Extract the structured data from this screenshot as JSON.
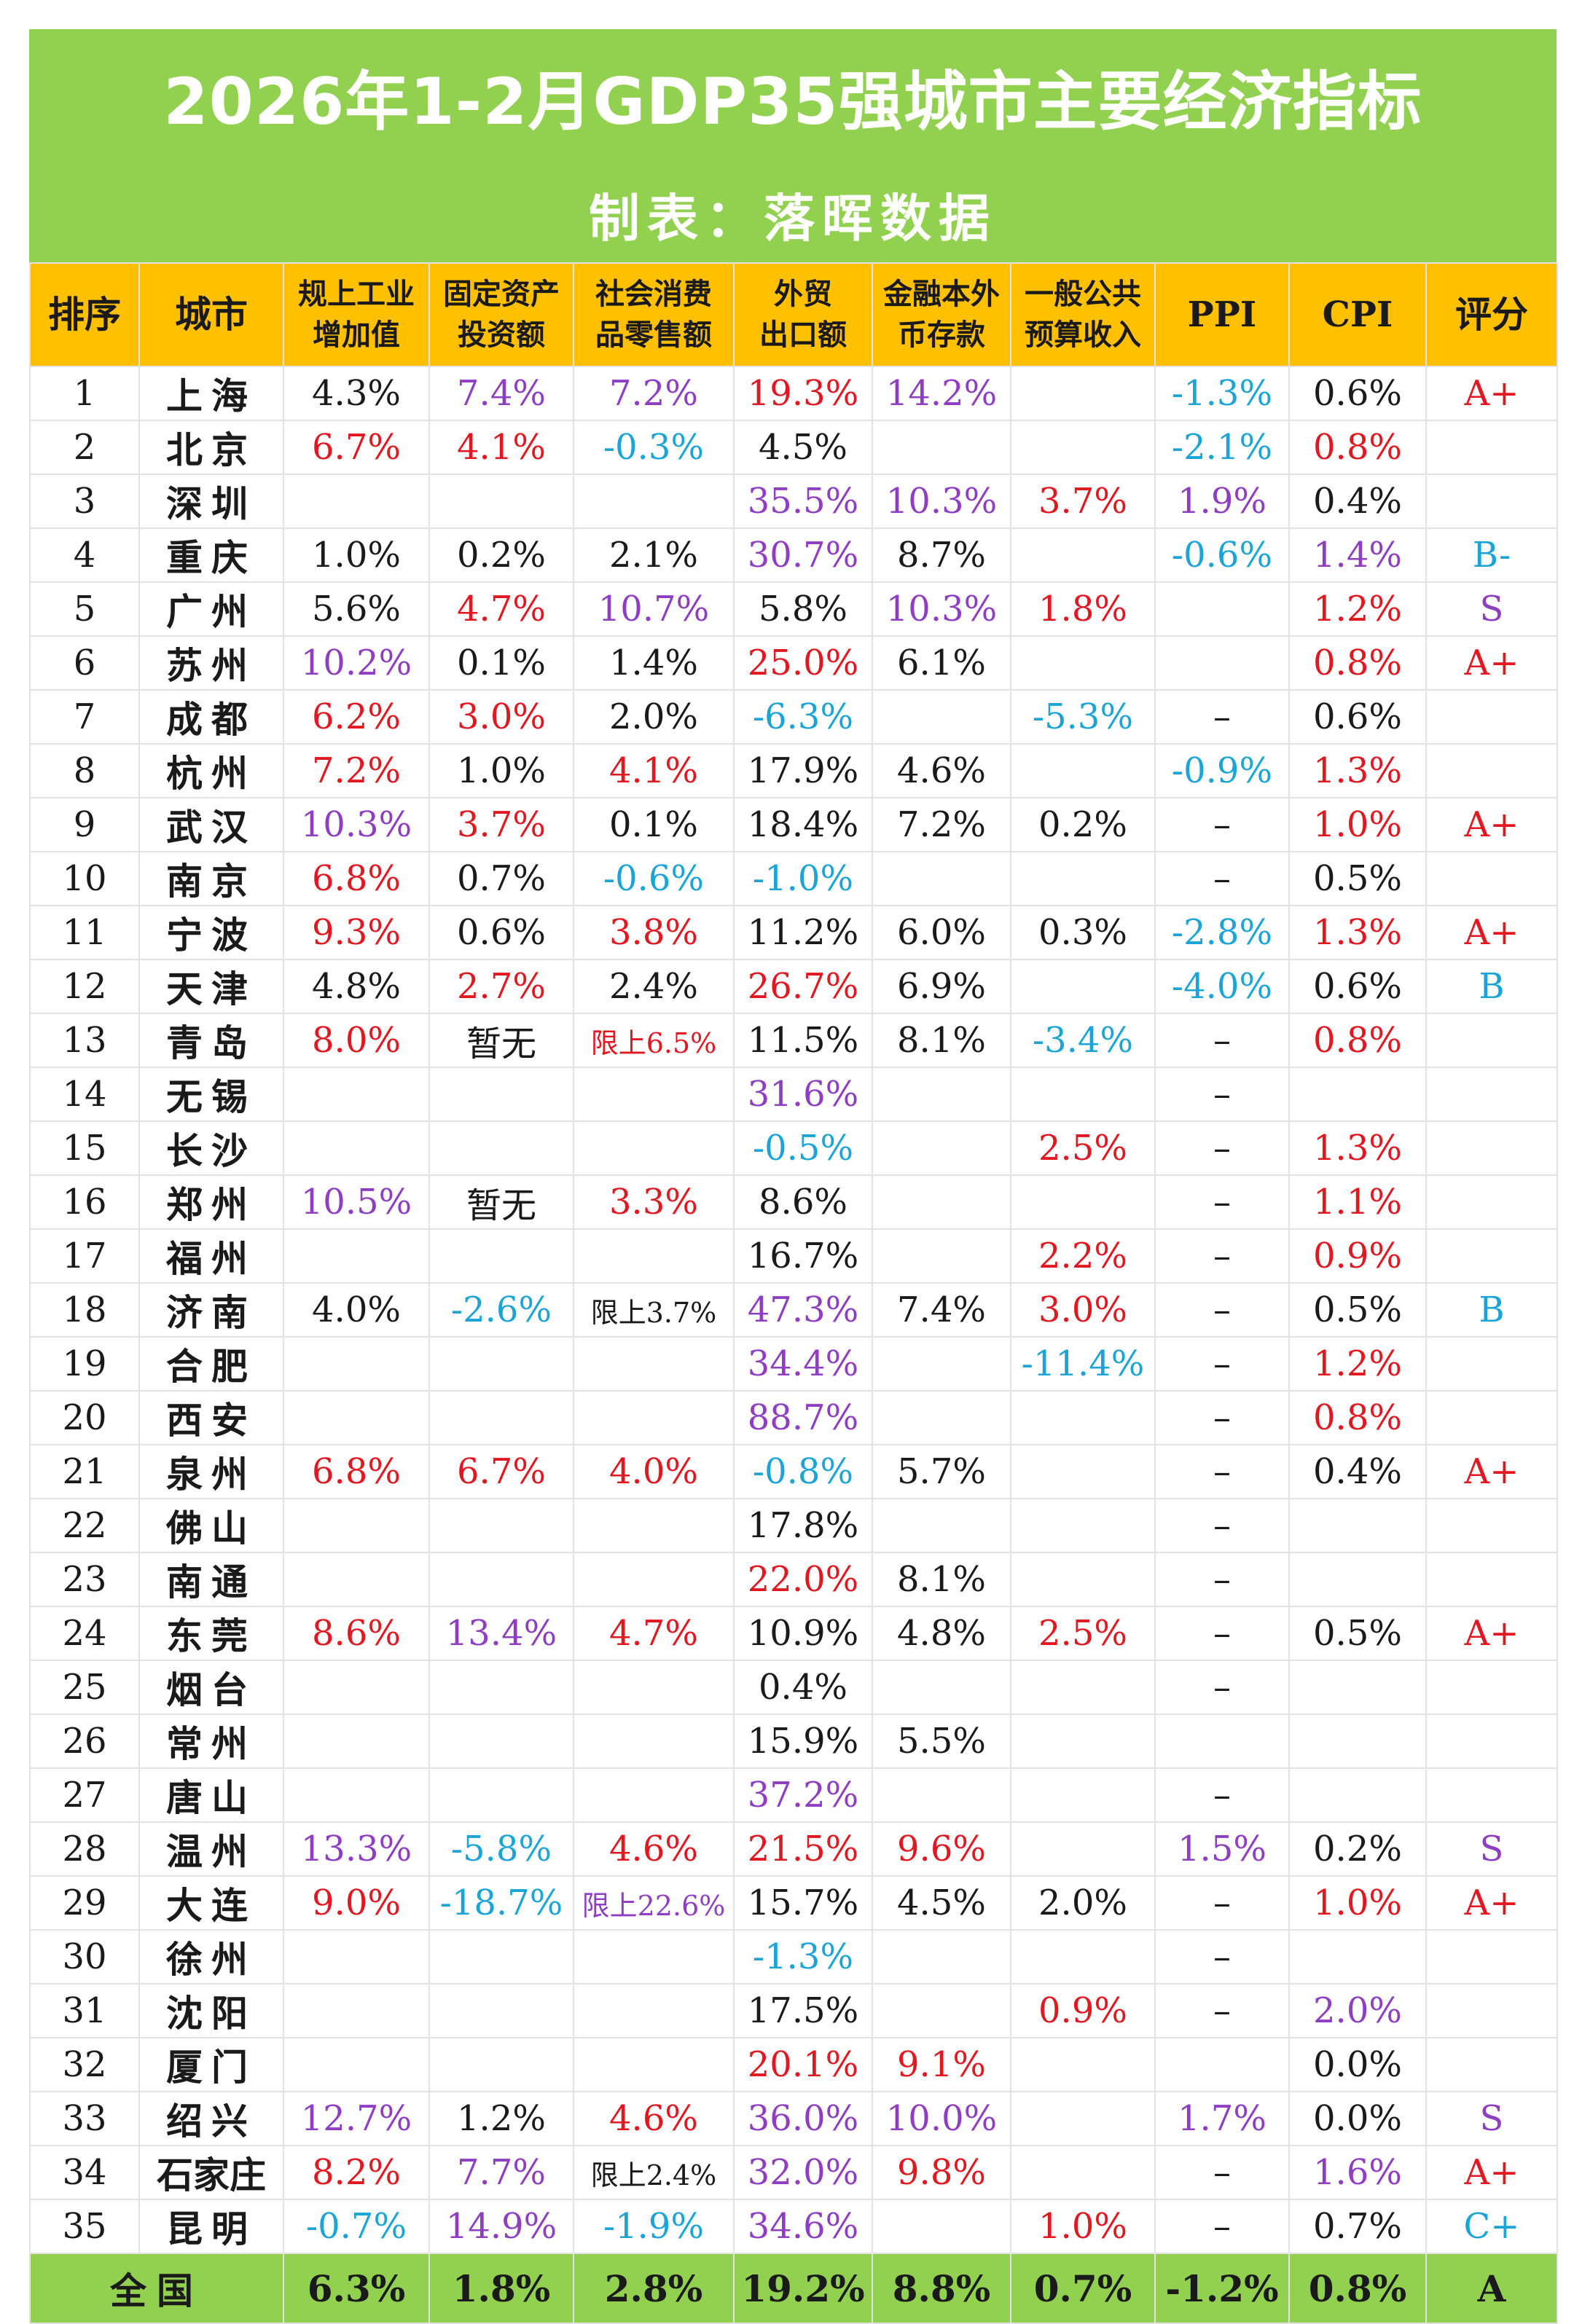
{
  "title": "2026年1-2月GDP35强城市主要经济指标",
  "subtitle": "制表：落晖数据",
  "headers": [
    {
      "line1": "排序",
      "line2": ""
    },
    {
      "line1": "城市",
      "line2": ""
    },
    {
      "line1": "规上工业",
      "line2": "增加值"
    },
    {
      "line1": "固定资产",
      "line2": "投资额"
    },
    {
      "line1": "社会消费",
      "line2": "品零售额"
    },
    {
      "line1": "外贸",
      "line2": "出口额"
    },
    {
      "line1": "金融本外",
      "line2": "币存款"
    },
    {
      "line1": "一般公共",
      "line2": "预算收入"
    },
    {
      "line1": "PPI",
      "line2": ""
    },
    {
      "line1": "CPI",
      "line2": ""
    },
    {
      "line1": "评分",
      "line2": ""
    }
  ],
  "colors": {
    "red": "#e3171f",
    "purple": "#8f3ec4",
    "blue": "#1aa4d8",
    "black": "#1a1a1a",
    "title_green": "#92d050",
    "header_orange": "#ffc000"
  },
  "rows": [
    {
      "rank": "1",
      "city": "上海",
      "cells": [
        [
          "4.3%",
          "k"
        ],
        [
          "7.4%",
          "p"
        ],
        [
          "7.2%",
          "p"
        ],
        [
          "19.3%",
          "r"
        ],
        [
          "14.2%",
          "p"
        ],
        [
          "",
          ""
        ],
        [
          "-1.3%",
          "b"
        ],
        [
          "0.6%",
          "k"
        ],
        [
          "A+",
          "r"
        ]
      ]
    },
    {
      "rank": "2",
      "city": "北京",
      "cells": [
        [
          "6.7%",
          "r"
        ],
        [
          "4.1%",
          "r"
        ],
        [
          "-0.3%",
          "b"
        ],
        [
          "4.5%",
          "k"
        ],
        [
          "",
          ""
        ],
        [
          "",
          ""
        ],
        [
          "-2.1%",
          "b"
        ],
        [
          "0.8%",
          "r"
        ],
        [
          "",
          ""
        ]
      ]
    },
    {
      "rank": "3",
      "city": "深圳",
      "cells": [
        [
          "",
          ""
        ],
        [
          "",
          ""
        ],
        [
          "",
          ""
        ],
        [
          "35.5%",
          "p"
        ],
        [
          "10.3%",
          "p"
        ],
        [
          "3.7%",
          "r"
        ],
        [
          "1.9%",
          "p"
        ],
        [
          "0.4%",
          "k"
        ],
        [
          "",
          ""
        ]
      ]
    },
    {
      "rank": "4",
      "city": "重庆",
      "cells": [
        [
          "1.0%",
          "k"
        ],
        [
          "0.2%",
          "k"
        ],
        [
          "2.1%",
          "k"
        ],
        [
          "30.7%",
          "p"
        ],
        [
          "8.7%",
          "k"
        ],
        [
          "",
          ""
        ],
        [
          "-0.6%",
          "b"
        ],
        [
          "1.4%",
          "p"
        ],
        [
          "B-",
          "b"
        ]
      ]
    },
    {
      "rank": "5",
      "city": "广州",
      "cells": [
        [
          "5.6%",
          "k"
        ],
        [
          "4.7%",
          "r"
        ],
        [
          "10.7%",
          "p"
        ],
        [
          "5.8%",
          "k"
        ],
        [
          "10.3%",
          "p"
        ],
        [
          "1.8%",
          "r"
        ],
        [
          "",
          ""
        ],
        [
          "1.2%",
          "r"
        ],
        [
          "S",
          "p"
        ]
      ]
    },
    {
      "rank": "6",
      "city": "苏州",
      "cells": [
        [
          "10.2%",
          "p"
        ],
        [
          "0.1%",
          "k"
        ],
        [
          "1.4%",
          "k"
        ],
        [
          "25.0%",
          "r"
        ],
        [
          "6.1%",
          "k"
        ],
        [
          "",
          ""
        ],
        [
          "",
          ""
        ],
        [
          "0.8%",
          "r"
        ],
        [
          "A+",
          "r"
        ]
      ]
    },
    {
      "rank": "7",
      "city": "成都",
      "cells": [
        [
          "6.2%",
          "r"
        ],
        [
          "3.0%",
          "r"
        ],
        [
          "2.0%",
          "k"
        ],
        [
          "-6.3%",
          "b"
        ],
        [
          "",
          ""
        ],
        [
          "-5.3%",
          "b"
        ],
        [
          "–",
          "k"
        ],
        [
          "0.6%",
          "k"
        ],
        [
          "",
          ""
        ]
      ]
    },
    {
      "rank": "8",
      "city": "杭州",
      "cells": [
        [
          "7.2%",
          "r"
        ],
        [
          "1.0%",
          "k"
        ],
        [
          "4.1%",
          "r"
        ],
        [
          "17.9%",
          "k"
        ],
        [
          "4.6%",
          "k"
        ],
        [
          "",
          ""
        ],
        [
          "-0.9%",
          "b"
        ],
        [
          "1.3%",
          "r"
        ],
        [
          "",
          ""
        ]
      ]
    },
    {
      "rank": "9",
      "city": "武汉",
      "cells": [
        [
          "10.3%",
          "p"
        ],
        [
          "3.7%",
          "r"
        ],
        [
          "0.1%",
          "k"
        ],
        [
          "18.4%",
          "k"
        ],
        [
          "7.2%",
          "k"
        ],
        [
          "0.2%",
          "k"
        ],
        [
          "–",
          "k"
        ],
        [
          "1.0%",
          "r"
        ],
        [
          "A+",
          "r"
        ]
      ]
    },
    {
      "rank": "10",
      "city": "南京",
      "cells": [
        [
          "6.8%",
          "r"
        ],
        [
          "0.7%",
          "k"
        ],
        [
          "-0.6%",
          "b"
        ],
        [
          "-1.0%",
          "b"
        ],
        [
          "",
          ""
        ],
        [
          "",
          ""
        ],
        [
          "–",
          "k"
        ],
        [
          "0.5%",
          "k"
        ],
        [
          "",
          ""
        ]
      ]
    },
    {
      "rank": "11",
      "city": "宁波",
      "cells": [
        [
          "9.3%",
          "r"
        ],
        [
          "0.6%",
          "k"
        ],
        [
          "3.8%",
          "r"
        ],
        [
          "11.2%",
          "k"
        ],
        [
          "6.0%",
          "k"
        ],
        [
          "0.3%",
          "k"
        ],
        [
          "-2.8%",
          "b"
        ],
        [
          "1.3%",
          "r"
        ],
        [
          "A+",
          "r"
        ]
      ]
    },
    {
      "rank": "12",
      "city": "天津",
      "cells": [
        [
          "4.8%",
          "k"
        ],
        [
          "2.7%",
          "r"
        ],
        [
          "2.4%",
          "k"
        ],
        [
          "26.7%",
          "r"
        ],
        [
          "6.9%",
          "k"
        ],
        [
          "",
          ""
        ],
        [
          "-4.0%",
          "b"
        ],
        [
          "0.6%",
          "k"
        ],
        [
          "B",
          "b"
        ]
      ]
    },
    {
      "rank": "13",
      "city": "青岛",
      "cells": [
        [
          "8.0%",
          "r"
        ],
        [
          "暂无",
          "k"
        ],
        [
          "限上6.5%",
          "rs"
        ],
        [
          "11.5%",
          "k"
        ],
        [
          "8.1%",
          "k"
        ],
        [
          "-3.4%",
          "b"
        ],
        [
          "–",
          "k"
        ],
        [
          "0.8%",
          "r"
        ],
        [
          "",
          ""
        ]
      ]
    },
    {
      "rank": "14",
      "city": "无锡",
      "cells": [
        [
          "",
          ""
        ],
        [
          "",
          ""
        ],
        [
          "",
          ""
        ],
        [
          "31.6%",
          "p"
        ],
        [
          "",
          ""
        ],
        [
          "",
          ""
        ],
        [
          "–",
          "k"
        ],
        [
          "",
          ""
        ],
        [
          "",
          ""
        ]
      ]
    },
    {
      "rank": "15",
      "city": "长沙",
      "cells": [
        [
          "",
          ""
        ],
        [
          "",
          ""
        ],
        [
          "",
          ""
        ],
        [
          "-0.5%",
          "b"
        ],
        [
          "",
          ""
        ],
        [
          "2.5%",
          "r"
        ],
        [
          "–",
          "k"
        ],
        [
          "1.3%",
          "r"
        ],
        [
          "",
          ""
        ]
      ]
    },
    {
      "rank": "16",
      "city": "郑州",
      "cells": [
        [
          "10.5%",
          "p"
        ],
        [
          "暂无",
          "k"
        ],
        [
          "3.3%",
          "r"
        ],
        [
          "8.6%",
          "k"
        ],
        [
          "",
          ""
        ],
        [
          "",
          ""
        ],
        [
          "–",
          "k"
        ],
        [
          "1.1%",
          "r"
        ],
        [
          "",
          ""
        ]
      ]
    },
    {
      "rank": "17",
      "city": "福州",
      "cells": [
        [
          "",
          ""
        ],
        [
          "",
          ""
        ],
        [
          "",
          ""
        ],
        [
          "16.7%",
          "k"
        ],
        [
          "",
          ""
        ],
        [
          "2.2%",
          "r"
        ],
        [
          "–",
          "k"
        ],
        [
          "0.9%",
          "r"
        ],
        [
          "",
          ""
        ]
      ]
    },
    {
      "rank": "18",
      "city": "济南",
      "cells": [
        [
          "4.0%",
          "k"
        ],
        [
          "-2.6%",
          "b"
        ],
        [
          "限上3.7%",
          "ks"
        ],
        [
          "47.3%",
          "p"
        ],
        [
          "7.4%",
          "k"
        ],
        [
          "3.0%",
          "r"
        ],
        [
          "–",
          "k"
        ],
        [
          "0.5%",
          "k"
        ],
        [
          "B",
          "b"
        ]
      ]
    },
    {
      "rank": "19",
      "city": "合肥",
      "cells": [
        [
          "",
          ""
        ],
        [
          "",
          ""
        ],
        [
          "",
          ""
        ],
        [
          "34.4%",
          "p"
        ],
        [
          "",
          ""
        ],
        [
          "-11.4%",
          "b"
        ],
        [
          "–",
          "k"
        ],
        [
          "1.2%",
          "r"
        ],
        [
          "",
          ""
        ]
      ]
    },
    {
      "rank": "20",
      "city": "西安",
      "cells": [
        [
          "",
          ""
        ],
        [
          "",
          ""
        ],
        [
          "",
          ""
        ],
        [
          "88.7%",
          "p"
        ],
        [
          "",
          ""
        ],
        [
          "",
          ""
        ],
        [
          "–",
          "k"
        ],
        [
          "0.8%",
          "r"
        ],
        [
          "",
          ""
        ]
      ]
    },
    {
      "rank": "21",
      "city": "泉州",
      "cells": [
        [
          "6.8%",
          "r"
        ],
        [
          "6.7%",
          "r"
        ],
        [
          "4.0%",
          "r"
        ],
        [
          "-0.8%",
          "b"
        ],
        [
          "5.7%",
          "k"
        ],
        [
          "",
          ""
        ],
        [
          "–",
          "k"
        ],
        [
          "0.4%",
          "k"
        ],
        [
          "A+",
          "r"
        ]
      ]
    },
    {
      "rank": "22",
      "city": "佛山",
      "cells": [
        [
          "",
          ""
        ],
        [
          "",
          ""
        ],
        [
          "",
          ""
        ],
        [
          "17.8%",
          "k"
        ],
        [
          "",
          ""
        ],
        [
          "",
          ""
        ],
        [
          "–",
          "k"
        ],
        [
          "",
          ""
        ],
        [
          "",
          ""
        ]
      ]
    },
    {
      "rank": "23",
      "city": "南通",
      "cells": [
        [
          "",
          ""
        ],
        [
          "",
          ""
        ],
        [
          "",
          ""
        ],
        [
          "22.0%",
          "r"
        ],
        [
          "8.1%",
          "k"
        ],
        [
          "",
          ""
        ],
        [
          "–",
          "k"
        ],
        [
          "",
          ""
        ],
        [
          "",
          ""
        ]
      ]
    },
    {
      "rank": "24",
      "city": "东莞",
      "cells": [
        [
          "8.6%",
          "r"
        ],
        [
          "13.4%",
          "p"
        ],
        [
          "4.7%",
          "r"
        ],
        [
          "10.9%",
          "k"
        ],
        [
          "4.8%",
          "k"
        ],
        [
          "2.5%",
          "r"
        ],
        [
          "–",
          "k"
        ],
        [
          "0.5%",
          "k"
        ],
        [
          "A+",
          "r"
        ]
      ]
    },
    {
      "rank": "25",
      "city": "烟台",
      "cells": [
        [
          "",
          ""
        ],
        [
          "",
          ""
        ],
        [
          "",
          ""
        ],
        [
          "0.4%",
          "k"
        ],
        [
          "",
          ""
        ],
        [
          "",
          ""
        ],
        [
          "–",
          "k"
        ],
        [
          "",
          ""
        ],
        [
          "",
          ""
        ]
      ]
    },
    {
      "rank": "26",
      "city": "常州",
      "cells": [
        [
          "",
          ""
        ],
        [
          "",
          ""
        ],
        [
          "",
          ""
        ],
        [
          "15.9%",
          "k"
        ],
        [
          "5.5%",
          "k"
        ],
        [
          "",
          ""
        ],
        [
          "",
          ""
        ],
        [
          "",
          ""
        ],
        [
          "",
          ""
        ]
      ]
    },
    {
      "rank": "27",
      "city": "唐山",
      "cells": [
        [
          "",
          ""
        ],
        [
          "",
          ""
        ],
        [
          "",
          ""
        ],
        [
          "37.2%",
          "p"
        ],
        [
          "",
          ""
        ],
        [
          "",
          ""
        ],
        [
          "–",
          "k"
        ],
        [
          "",
          ""
        ],
        [
          "",
          ""
        ]
      ]
    },
    {
      "rank": "28",
      "city": "温州",
      "cells": [
        [
          "13.3%",
          "p"
        ],
        [
          "-5.8%",
          "b"
        ],
        [
          "4.6%",
          "r"
        ],
        [
          "21.5%",
          "r"
        ],
        [
          "9.6%",
          "r"
        ],
        [
          "",
          ""
        ],
        [
          "1.5%",
          "p"
        ],
        [
          "0.2%",
          "k"
        ],
        [
          "S",
          "p"
        ]
      ]
    },
    {
      "rank": "29",
      "city": "大连",
      "cells": [
        [
          "9.0%",
          "r"
        ],
        [
          "-18.7%",
          "b"
        ],
        [
          "限上22.6%",
          "ps"
        ],
        [
          "15.7%",
          "k"
        ],
        [
          "4.5%",
          "k"
        ],
        [
          "2.0%",
          "k"
        ],
        [
          "–",
          "k"
        ],
        [
          "1.0%",
          "r"
        ],
        [
          "A+",
          "r"
        ]
      ]
    },
    {
      "rank": "30",
      "city": "徐州",
      "cells": [
        [
          "",
          ""
        ],
        [
          "",
          ""
        ],
        [
          "",
          ""
        ],
        [
          "-1.3%",
          "b"
        ],
        [
          "",
          ""
        ],
        [
          "",
          ""
        ],
        [
          "–",
          "k"
        ],
        [
          "",
          ""
        ],
        [
          "",
          ""
        ]
      ]
    },
    {
      "rank": "31",
      "city": "沈阳",
      "cells": [
        [
          "",
          ""
        ],
        [
          "",
          ""
        ],
        [
          "",
          ""
        ],
        [
          "17.5%",
          "k"
        ],
        [
          "",
          ""
        ],
        [
          "0.9%",
          "r"
        ],
        [
          "–",
          "k"
        ],
        [
          "2.0%",
          "p"
        ],
        [
          "",
          ""
        ]
      ]
    },
    {
      "rank": "32",
      "city": "厦门",
      "cells": [
        [
          "",
          ""
        ],
        [
          "",
          ""
        ],
        [
          "",
          ""
        ],
        [
          "20.1%",
          "r"
        ],
        [
          "9.1%",
          "r"
        ],
        [
          "",
          ""
        ],
        [
          "",
          ""
        ],
        [
          "0.0%",
          "k"
        ],
        [
          "",
          ""
        ]
      ]
    },
    {
      "rank": "33",
      "city": "绍兴",
      "cells": [
        [
          "12.7%",
          "p"
        ],
        [
          "1.2%",
          "k"
        ],
        [
          "4.6%",
          "r"
        ],
        [
          "36.0%",
          "p"
        ],
        [
          "10.0%",
          "p"
        ],
        [
          "",
          ""
        ],
        [
          "1.7%",
          "p"
        ],
        [
          "0.0%",
          "k"
        ],
        [
          "S",
          "p"
        ]
      ]
    },
    {
      "rank": "34",
      "city": "石家庄",
      "cells": [
        [
          "8.2%",
          "r"
        ],
        [
          "7.7%",
          "p"
        ],
        [
          "限上2.4%",
          "ks"
        ],
        [
          "32.0%",
          "p"
        ],
        [
          "9.8%",
          "r"
        ],
        [
          "",
          ""
        ],
        [
          "–",
          "k"
        ],
        [
          "1.6%",
          "p"
        ],
        [
          "A+",
          "r"
        ]
      ]
    },
    {
      "rank": "35",
      "city": "昆明",
      "cells": [
        [
          "-0.7%",
          "b"
        ],
        [
          "14.9%",
          "p"
        ],
        [
          "-1.9%",
          "b"
        ],
        [
          "34.6%",
          "p"
        ],
        [
          "",
          ""
        ],
        [
          "1.0%",
          "r"
        ],
        [
          "–",
          "k"
        ],
        [
          "0.7%",
          "k"
        ],
        [
          "C+",
          "b"
        ]
      ]
    }
  ],
  "footer": {
    "label": "全国",
    "cells": [
      "6.3%",
      "1.8%",
      "2.8%",
      "19.2%",
      "8.8%",
      "0.7%",
      "-1.2%",
      "0.8%",
      "A"
    ]
  }
}
